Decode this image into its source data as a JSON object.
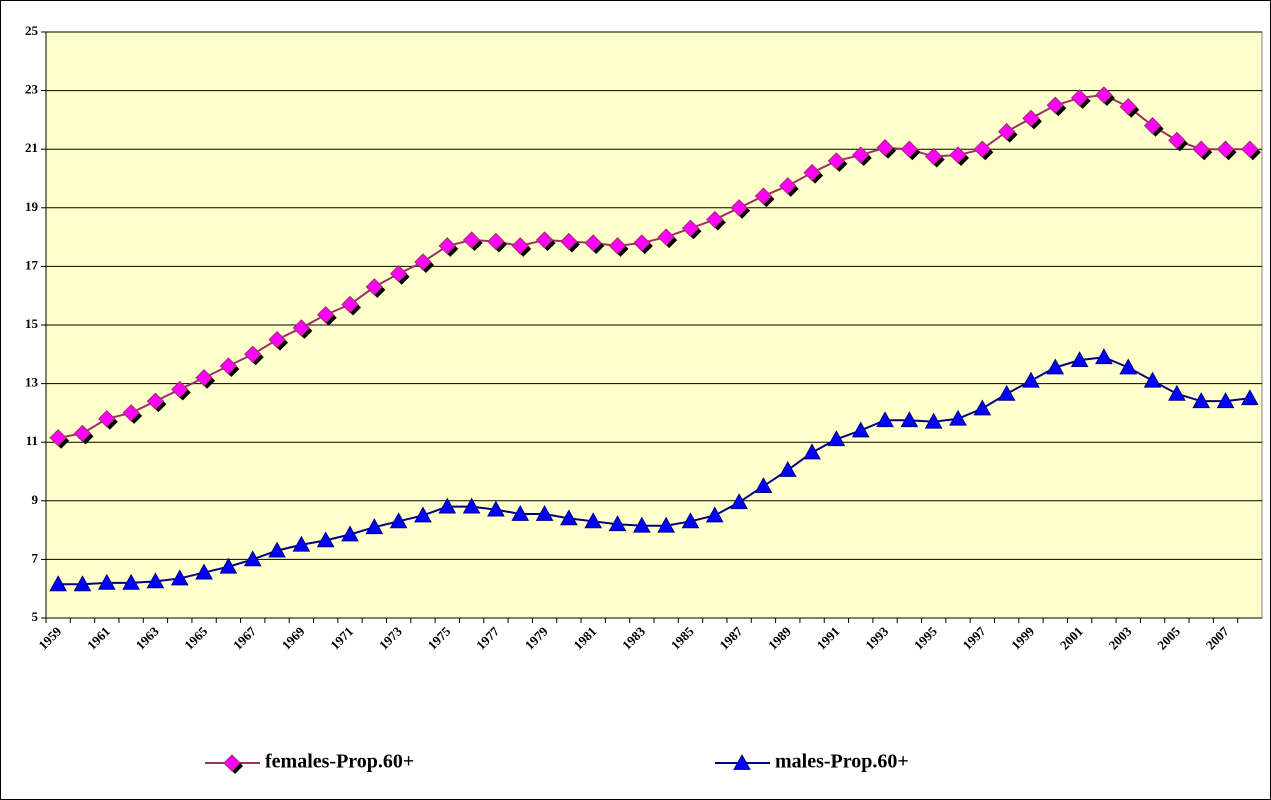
{
  "chart_data": {
    "type": "line",
    "categories": [
      "1959",
      null,
      "1961",
      null,
      "1963",
      null,
      "1965",
      null,
      "1967",
      null,
      "1969",
      null,
      "1971",
      null,
      "1973",
      null,
      "1975",
      null,
      "1977",
      null,
      "1979",
      null,
      "1981",
      null,
      "1983",
      null,
      "1985",
      null,
      "1987",
      null,
      "1989",
      null,
      "1991",
      null,
      "1993",
      null,
      "1995",
      null,
      "1997",
      null,
      "1999",
      null,
      "2001",
      null,
      "2003",
      null,
      "2005",
      null,
      "2007",
      null
    ],
    "series": [
      {
        "name": "females-Prop.60+",
        "color": "#993366",
        "marker_color": "#ff00ff",
        "marker": "diamond",
        "values": [
          11.15,
          11.3,
          11.8,
          12.0,
          12.4,
          12.8,
          13.2,
          13.6,
          14.0,
          14.5,
          14.9,
          15.35,
          15.7,
          16.3,
          16.75,
          17.15,
          17.7,
          17.9,
          17.85,
          17.7,
          17.9,
          17.85,
          17.8,
          17.7,
          17.8,
          18.0,
          18.3,
          18.6,
          19.0,
          19.4,
          19.75,
          20.2,
          20.6,
          20.8,
          21.05,
          21.0,
          20.75,
          20.8,
          21.0,
          21.6,
          22.05,
          22.5,
          22.75,
          22.85,
          22.45,
          21.8,
          21.3,
          21.0,
          21.0,
          21.0
        ]
      },
      {
        "name": "males-Prop.60+",
        "color": "#000080",
        "marker_color": "#0000ff",
        "marker": "triangle",
        "values": [
          6.15,
          6.15,
          6.2,
          6.2,
          6.25,
          6.35,
          6.55,
          6.75,
          7.0,
          7.3,
          7.5,
          7.65,
          7.85,
          8.1,
          8.3,
          8.5,
          8.8,
          8.8,
          8.7,
          8.55,
          8.55,
          8.4,
          8.3,
          8.2,
          8.15,
          8.15,
          8.3,
          8.5,
          8.95,
          9.5,
          10.05,
          10.65,
          11.1,
          11.4,
          11.75,
          11.75,
          11.7,
          11.8,
          12.15,
          12.65,
          13.1,
          13.55,
          13.8,
          13.9,
          13.55,
          13.1,
          12.65,
          12.4,
          12.4,
          12.5
        ]
      }
    ],
    "ylim": [
      5,
      25
    ],
    "yticks": [
      5,
      7,
      9,
      11,
      13,
      15,
      17,
      19,
      21,
      23,
      25
    ],
    "grid": true,
    "plot_background": "#ffffcc",
    "legend": "bottom"
  }
}
